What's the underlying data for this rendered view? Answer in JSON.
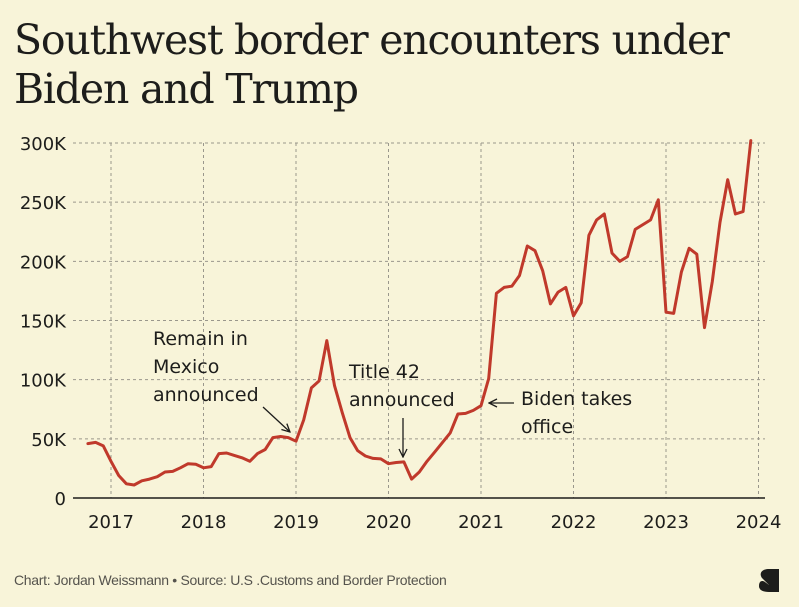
{
  "title": "Southwest border encounters under Biden and Trump",
  "footer": {
    "credit": "Chart: Jordan Weissmann • Source: U.S .Customs and Border Protection",
    "logo": "substack-logo-icon"
  },
  "colors": {
    "background": "#f8f4d9",
    "line": "#c0392b",
    "grid": "#9a978c",
    "text": "#1d1d1b"
  },
  "chart_data": {
    "type": "line",
    "title": "Southwest border encounters under Biden and Trump",
    "xlabel": "",
    "ylabel": "",
    "ylim": [
      0,
      300000
    ],
    "xlim": [
      2016.75,
      2024
    ],
    "grid": true,
    "y_ticks": [
      0,
      50000,
      100000,
      150000,
      200000,
      250000,
      300000
    ],
    "y_tick_labels": [
      "0",
      "50K",
      "100K",
      "150K",
      "200K",
      "250K",
      "300K"
    ],
    "x_ticks": [
      2017,
      2018,
      2019,
      2020,
      2021,
      2022,
      2023,
      2024
    ],
    "x_tick_labels": [
      "2017",
      "2018",
      "2019",
      "2020",
      "2021",
      "2022",
      "2023",
      "2024"
    ],
    "series": [
      {
        "name": "Southwest border encounters",
        "start": "2016-10",
        "frequency": "monthly",
        "values": [
          46000,
          47000,
          44000,
          31000,
          19000,
          12000,
          11000,
          14500,
          16000,
          18000,
          22000,
          22500,
          25500,
          29000,
          28500,
          25500,
          26500,
          37500,
          38000,
          36000,
          34000,
          31000,
          37500,
          41000,
          51000,
          52000,
          51000,
          48000,
          66000,
          93000,
          99000,
          133000,
          95000,
          72000,
          51000,
          40000,
          35500,
          33500,
          33000,
          29000,
          30000,
          30500,
          16000,
          22000,
          31000,
          39000,
          47000,
          55000,
          71000,
          71500,
          74000,
          78000,
          101000,
          173000,
          178000,
          179000,
          188000,
          213000,
          209000,
          192000,
          164000,
          174000,
          178000,
          154000,
          165000,
          222000,
          235000,
          240000,
          207000,
          200000,
          204000,
          227000,
          231000,
          235000,
          252000,
          157000,
          156000,
          191000,
          211000,
          206000,
          144000,
          183000,
          233000,
          269000,
          240000,
          242000,
          302000
        ]
      }
    ],
    "annotations": [
      {
        "text": [
          "Remain in",
          "Mexico",
          "announced"
        ],
        "points_to": "2018-12",
        "arrow": "diagonal"
      },
      {
        "text": [
          "Title 42",
          "announced"
        ],
        "points_to": "2020-03",
        "arrow": "down"
      },
      {
        "text": [
          "Biden takes",
          "office"
        ],
        "points_to": "2021-01",
        "arrow": "left"
      }
    ]
  }
}
